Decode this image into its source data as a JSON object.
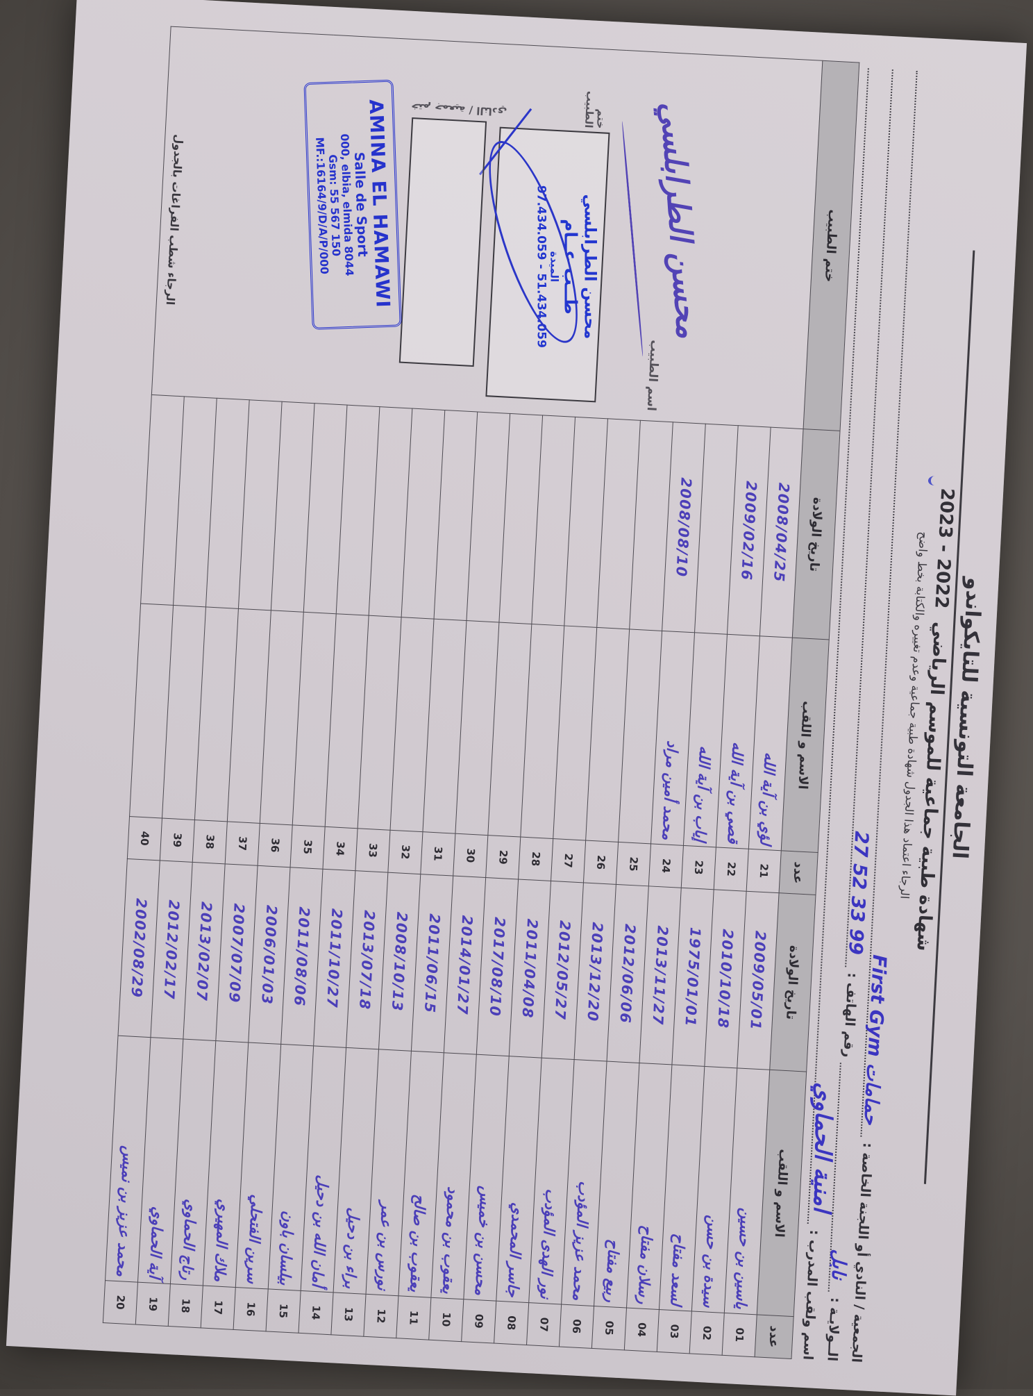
{
  "page": {
    "background_color": "#57524e",
    "paper_color": "#d3ccd2",
    "ink_color": "#4b3fb8",
    "stamp_blue": "#2633cc"
  },
  "header": {
    "federation": "الجامعة التونسية للتايكواندو",
    "title": "شهادة طبية جماعية للموسم الرياضي",
    "season_years": "2023 - 2022",
    "instruction": "الرجاء اعتماد هذا الجدول شهادة طبية جماعية وعدم تغييره والكتابة بخط واضح",
    "fields": {
      "club_label": "الجمعية / النادي أو اللجنة الخاصة :",
      "club_value": "First Gym حمامات",
      "state_label": "الــولايـة :",
      "state_value": "نابل",
      "phone_label": "رقم الهاتف :",
      "phone_value": "27 52 33 99",
      "coach_label": "اسم ولقب المدرب :",
      "coach_value": "امنية الحماوي"
    }
  },
  "table": {
    "headers": {
      "num": "عدد",
      "name": "الاسم و اللقب",
      "birth": "تاريخ الولادة",
      "stamp": "ختم الطبيب"
    },
    "rows_right": [
      {
        "num": "01",
        "name": "ياسين بن حسين",
        "birth": "2009/05/01"
      },
      {
        "num": "02",
        "name": "سيدة بن حسن",
        "birth": "2010/10/18"
      },
      {
        "num": "03",
        "name": "لسعد مفتاح",
        "birth": "1975/01/01"
      },
      {
        "num": "04",
        "name": "رسلان مفتاح",
        "birth": "2013/11/27"
      },
      {
        "num": "05",
        "name": "ربيع مفتاح",
        "birth": "2012/06/06"
      },
      {
        "num": "06",
        "name": "محمد عزيز المؤدب",
        "birth": "2013/12/20"
      },
      {
        "num": "07",
        "name": "نور الهدى المؤدب",
        "birth": "2012/05/27"
      },
      {
        "num": "08",
        "name": "جاسر المحمدي",
        "birth": "2011/04/08"
      },
      {
        "num": "09",
        "name": "محسن بن خميس",
        "birth": "2017/08/10"
      },
      {
        "num": "10",
        "name": "يعقوب بن محمود",
        "birth": "2014/01/27"
      },
      {
        "num": "11",
        "name": "يعقوب بن صالح",
        "birth": "2011/06/15"
      },
      {
        "num": "12",
        "name": "نورس بن عمر",
        "birth": "2008/10/13"
      },
      {
        "num": "13",
        "name": "براء بن دحيل",
        "birth": "2013/07/18"
      },
      {
        "num": "14",
        "name": "أمان الله بن دحيل",
        "birth": "2011/10/27"
      },
      {
        "num": "15",
        "name": "بيلسان باون",
        "birth": "2011/08/06"
      },
      {
        "num": "16",
        "name": "سرين الفتحلي",
        "birth": "2006/01/03"
      },
      {
        "num": "17",
        "name": "ملاك المهيري",
        "birth": "2007/07/09"
      },
      {
        "num": "18",
        "name": "رتاج الحماوي",
        "birth": "2013/02/07"
      },
      {
        "num": "19",
        "name": "آية الحماوي",
        "birth": "2012/02/17"
      },
      {
        "num": "20",
        "name": "محمد عزيز بن نميس",
        "birth": "2002/08/29"
      }
    ],
    "rows_left": [
      {
        "num": "21",
        "name": "لؤي بن آية الله",
        "birth": "2008/04/25"
      },
      {
        "num": "22",
        "name": "قصي بن آية الله",
        "birth": "2009/02/16"
      },
      {
        "num": "23",
        "name": "إياب بن آية الله",
        "birth": ""
      },
      {
        "num": "24",
        "name": "محمد أمين مراد",
        "birth": "2008/08/10"
      },
      {
        "num": "25",
        "name": "",
        "birth": ""
      },
      {
        "num": "26",
        "name": "",
        "birth": ""
      },
      {
        "num": "27",
        "name": "",
        "birth": ""
      },
      {
        "num": "28",
        "name": "",
        "birth": ""
      },
      {
        "num": "29",
        "name": "",
        "birth": ""
      },
      {
        "num": "30",
        "name": "",
        "birth": ""
      },
      {
        "num": "31",
        "name": "",
        "birth": ""
      },
      {
        "num": "32",
        "name": "",
        "birth": ""
      },
      {
        "num": "33",
        "name": "",
        "birth": ""
      },
      {
        "num": "34",
        "name": "",
        "birth": ""
      },
      {
        "num": "35",
        "name": "",
        "birth": ""
      },
      {
        "num": "36",
        "name": "",
        "birth": ""
      },
      {
        "num": "37",
        "name": "",
        "birth": ""
      },
      {
        "num": "38",
        "name": "",
        "birth": ""
      },
      {
        "num": "39",
        "name": "",
        "birth": ""
      },
      {
        "num": "40",
        "name": "",
        "birth": ""
      }
    ]
  },
  "stamp_section": {
    "doctor_name_label": "اسم الطبيب",
    "doctor_name_value": "محسن الطرابلسي",
    "doctor_box_label": "ختم الطبيب",
    "doctor_stamp": {
      "name": "محسن الطرابلسي",
      "specialty": "طــب عــام",
      "city": "الميدة",
      "phones": "97.434.059 - 51.434.059"
    },
    "club_box_label": "ختم جمعية / النادي",
    "club_stamp": {
      "name": "AMINA EL HAMAWI",
      "line2": "Salle de Sport",
      "line3": "000, elbia, elmida 8044",
      "line4": "Gsm: 55 567 150",
      "line5": "MF.:16164/9/D/A/P/000"
    },
    "footer_note": "الرجاء شطب الفراغات بالجدول"
  }
}
